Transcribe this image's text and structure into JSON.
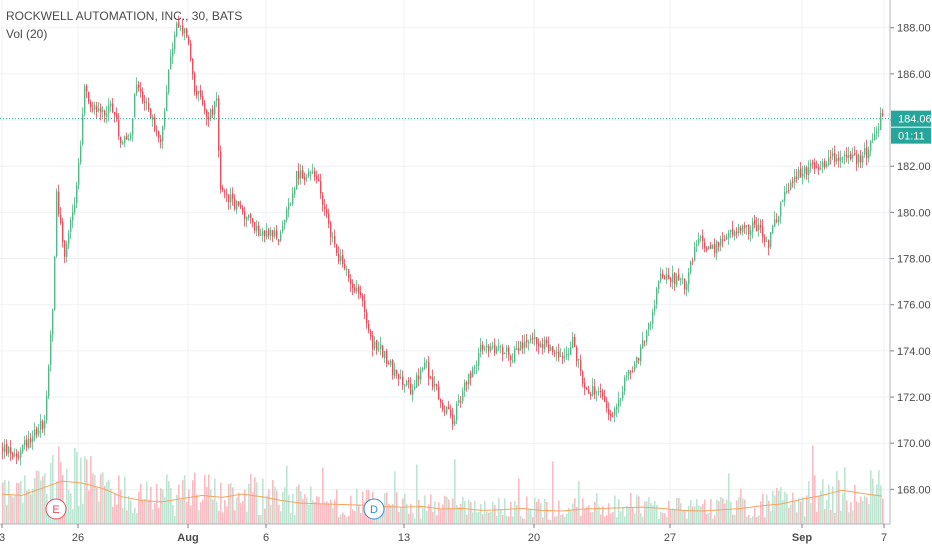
{
  "header": {
    "title": "ROCKWELL AUTOMATION, INC., 30, BATS",
    "volume_label": "Vol (20)"
  },
  "colors": {
    "up": "#53b987",
    "down": "#eb4d5c",
    "vol_up": "#a8dcc3",
    "vol_down": "#f5a6ae",
    "vol_ma": "#f5a35c",
    "grid": "#eef0f3",
    "last_price_line": "#22ab94",
    "last_price_bg": "#26a69a"
  },
  "price_label": {
    "value": "184.06",
    "countdown": "01:11"
  },
  "events": [
    {
      "letter": "E",
      "color": "#e24b5d",
      "x_bar": 27
    },
    {
      "letter": "D",
      "color": "#2a8fd0",
      "x_bar": 186
    }
  ],
  "chart_data": {
    "type": "candlestick",
    "ylim": [
      166.5,
      189.2
    ],
    "y_ticks": [
      "188.00",
      "186.00",
      "184.00",
      "182.00",
      "180.00",
      "178.00",
      "176.00",
      "174.00",
      "172.00",
      "170.00",
      "168.00"
    ],
    "x_ticks": [
      {
        "label": "3",
        "bar": 0
      },
      {
        "label": "26",
        "bar": 38
      },
      {
        "label": "Aug",
        "bar": 93,
        "bold": true
      },
      {
        "label": "6",
        "bar": 132
      },
      {
        "label": "13",
        "bar": 201
      },
      {
        "label": "20",
        "bar": 266
      },
      {
        "label": "27",
        "bar": 334
      },
      {
        "label": "Sep",
        "bar": 400,
        "bold": true
      },
      {
        "label": "7",
        "bar": 441
      }
    ],
    "waypoints": [
      [
        0,
        169.8
      ],
      [
        8,
        169.5
      ],
      [
        14,
        170.2
      ],
      [
        22,
        171.0
      ],
      [
        26,
        175.8
      ],
      [
        28,
        180.8
      ],
      [
        32,
        178.2
      ],
      [
        38,
        181.0
      ],
      [
        42,
        185.3
      ],
      [
        48,
        184.3
      ],
      [
        56,
        184.6
      ],
      [
        60,
        183.2
      ],
      [
        64,
        183.0
      ],
      [
        68,
        185.6
      ],
      [
        76,
        184.0
      ],
      [
        80,
        182.8
      ],
      [
        84,
        186.4
      ],
      [
        88,
        188.0
      ],
      [
        93,
        187.8
      ],
      [
        97,
        185.5
      ],
      [
        103,
        184.1
      ],
      [
        108,
        184.7
      ],
      [
        110,
        180.8
      ],
      [
        116,
        180.5
      ],
      [
        122,
        179.9
      ],
      [
        128,
        179.3
      ],
      [
        134,
        179.0
      ],
      [
        140,
        178.9
      ],
      [
        148,
        181.6
      ],
      [
        158,
        181.6
      ],
      [
        165,
        179.0
      ],
      [
        172,
        177.5
      ],
      [
        180,
        176.4
      ],
      [
        186,
        174.3
      ],
      [
        192,
        173.9
      ],
      [
        198,
        172.8
      ],
      [
        205,
        172.4
      ],
      [
        212,
        173.5
      ],
      [
        220,
        171.8
      ],
      [
        226,
        171.0
      ],
      [
        232,
        172.5
      ],
      [
        240,
        174.0
      ],
      [
        248,
        174.2
      ],
      [
        256,
        173.8
      ],
      [
        264,
        174.5
      ],
      [
        272,
        174.3
      ],
      [
        280,
        173.6
      ],
      [
        286,
        174.4
      ],
      [
        292,
        172.5
      ],
      [
        300,
        172.0
      ],
      [
        306,
        171.0
      ],
      [
        312,
        172.8
      ],
      [
        318,
        173.5
      ],
      [
        326,
        175.6
      ],
      [
        330,
        177.4
      ],
      [
        336,
        177.2
      ],
      [
        342,
        176.8
      ],
      [
        348,
        178.8
      ],
      [
        356,
        178.4
      ],
      [
        362,
        178.9
      ],
      [
        370,
        179.2
      ],
      [
        378,
        179.4
      ],
      [
        384,
        178.6
      ],
      [
        390,
        180.3
      ],
      [
        396,
        181.5
      ],
      [
        404,
        181.8
      ],
      [
        412,
        182.2
      ],
      [
        420,
        182.5
      ],
      [
        428,
        182.2
      ],
      [
        434,
        182.7
      ],
      [
        440,
        184.06
      ]
    ],
    "volume_ma_waypoints": [
      [
        0,
        4.6
      ],
      [
        10,
        4.4
      ],
      [
        20,
        5.5
      ],
      [
        30,
        6.6
      ],
      [
        40,
        6.3
      ],
      [
        50,
        5.5
      ],
      [
        60,
        4.2
      ],
      [
        70,
        3.6
      ],
      [
        80,
        3.4
      ],
      [
        90,
        3.9
      ],
      [
        100,
        4.4
      ],
      [
        110,
        4.1
      ],
      [
        120,
        4.6
      ],
      [
        130,
        4.2
      ],
      [
        140,
        3.6
      ],
      [
        150,
        3.2
      ],
      [
        160,
        3.1
      ],
      [
        170,
        3.0
      ],
      [
        180,
        2.9
      ],
      [
        190,
        2.7
      ],
      [
        200,
        2.6
      ],
      [
        210,
        2.7
      ],
      [
        220,
        2.3
      ],
      [
        230,
        2.4
      ],
      [
        240,
        2.1
      ],
      [
        250,
        2.2
      ],
      [
        260,
        2.4
      ],
      [
        270,
        2.1
      ],
      [
        280,
        2.0
      ],
      [
        290,
        2.3
      ],
      [
        300,
        2.4
      ],
      [
        310,
        2.5
      ],
      [
        320,
        2.6
      ],
      [
        330,
        2.4
      ],
      [
        340,
        2.1
      ],
      [
        350,
        2.0
      ],
      [
        360,
        2.2
      ],
      [
        370,
        2.4
      ],
      [
        380,
        2.8
      ],
      [
        390,
        3.1
      ],
      [
        400,
        3.8
      ],
      [
        410,
        4.4
      ],
      [
        420,
        5.2
      ],
      [
        430,
        4.7
      ],
      [
        440,
        4.3
      ]
    ]
  }
}
